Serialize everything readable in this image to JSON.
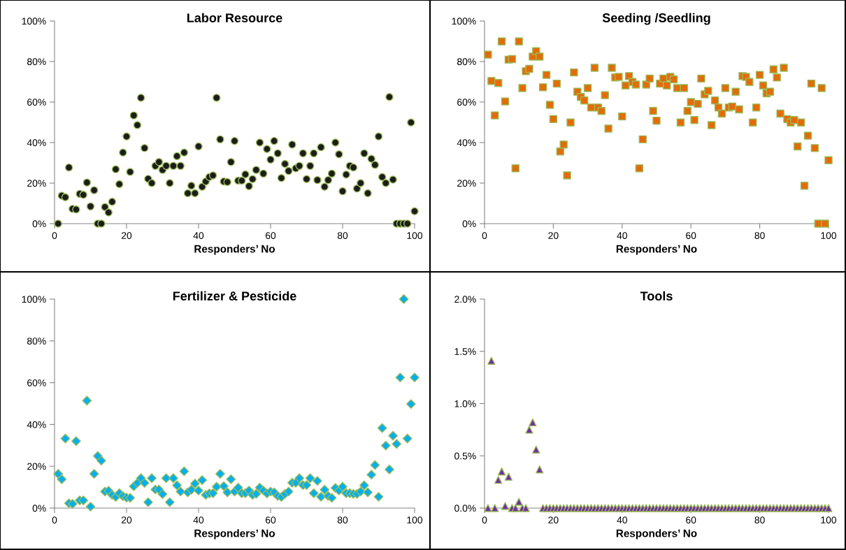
{
  "chart_data": [
    {
      "type": "scatter",
      "title": "Labor Resource",
      "xlabel": "Responders’ No",
      "marker": "circle",
      "grid": false,
      "x": [
        1,
        2,
        3,
        4,
        5,
        6,
        7,
        8,
        9,
        10,
        11,
        12,
        13,
        14,
        15,
        16,
        17,
        18,
        19,
        20,
        21,
        22,
        23,
        24,
        25,
        26,
        27,
        28,
        29,
        30,
        31,
        32,
        33,
        34,
        35,
        36,
        37,
        38,
        39,
        40,
        41,
        42,
        43,
        44,
        45,
        46,
        47,
        48,
        49,
        50,
        51,
        52,
        53,
        54,
        55,
        56,
        57,
        58,
        59,
        60,
        61,
        62,
        63,
        64,
        65,
        66,
        67,
        68,
        69,
        70,
        71,
        72,
        73,
        74,
        75,
        76,
        77,
        78,
        79,
        80,
        81,
        82,
        83,
        84,
        85,
        86,
        87,
        88,
        89,
        90,
        91,
        92,
        93,
        94,
        95,
        96,
        97,
        98,
        99,
        100
      ],
      "series": [
        {
          "color": "#1c1c1c",
          "values": [
            0,
            13.8,
            13,
            27.7,
            7.3,
            7,
            14.7,
            14.2,
            20.3,
            8.5,
            16.5,
            0,
            0,
            8.2,
            5.5,
            10.8,
            26.8,
            19.5,
            35.1,
            43,
            25.5,
            53.4,
            48.6,
            62.1,
            37.3,
            22.1,
            20,
            28.5,
            30.4,
            26.5,
            28.5,
            20,
            28.5,
            33.3,
            28.5,
            35.1,
            15,
            18.7,
            15,
            38.1,
            18.2,
            20.8,
            23,
            23.8,
            62.1,
            41.6,
            20.8,
            20.5,
            30.4,
            40.8,
            21.2,
            21.2,
            24.3,
            18.5,
            22,
            26.5,
            40,
            24.7,
            36.8,
            31.6,
            40.8,
            34.7,
            22.5,
            29.5,
            26,
            39,
            27.3,
            28.5,
            34.7,
            22,
            28.5,
            34.7,
            21.5,
            37.7,
            18.2,
            21.5,
            24.7,
            40,
            34.2,
            16,
            24.2,
            28.5,
            27.7,
            17.3,
            20,
            34.7,
            15,
            32,
            29,
            43,
            23,
            20,
            62.5,
            21.7,
            0,
            0,
            0,
            0,
            49.9,
            6.1
          ]
        }
      ],
      "xlim": [
        0,
        100
      ],
      "xticks": [
        0,
        20,
        40,
        60,
        80,
        100
      ],
      "ylim": [
        0,
        100
      ],
      "yticks": [
        {
          "value": 0,
          "label": "0%"
        },
        {
          "value": 20,
          "label": "20%"
        },
        {
          "value": 40,
          "label": "40%"
        },
        {
          "value": 60,
          "label": "60%"
        },
        {
          "value": 80,
          "label": "80%"
        },
        {
          "value": 100,
          "label": "100%"
        }
      ]
    },
    {
      "type": "scatter",
      "title": "Seeding /Seedling",
      "xlabel": "Responders’ No",
      "marker": "square",
      "grid": false,
      "x": [
        1,
        2,
        3,
        4,
        5,
        6,
        7,
        8,
        9,
        10,
        11,
        12,
        13,
        14,
        15,
        16,
        17,
        18,
        19,
        20,
        21,
        22,
        23,
        24,
        25,
        26,
        27,
        28,
        29,
        30,
        31,
        32,
        33,
        34,
        35,
        36,
        37,
        38,
        39,
        40,
        41,
        42,
        43,
        44,
        45,
        46,
        47,
        48,
        49,
        50,
        51,
        52,
        53,
        54,
        55,
        56,
        57,
        58,
        59,
        60,
        61,
        62,
        63,
        64,
        65,
        66,
        67,
        68,
        69,
        70,
        71,
        72,
        73,
        74,
        75,
        76,
        77,
        78,
        79,
        80,
        81,
        82,
        83,
        84,
        85,
        86,
        87,
        88,
        89,
        90,
        91,
        92,
        93,
        94,
        95,
        96,
        97,
        98,
        99,
        100
      ],
      "series": [
        {
          "color": "#e36c09",
          "values": [
            83.4,
            70.4,
            53.4,
            69.4,
            89.9,
            60.3,
            80.9,
            81.2,
            27.3,
            89.9,
            66.9,
            75.2,
            76.4,
            82.4,
            85.1,
            82.4,
            67.3,
            73.4,
            58.6,
            51.6,
            69.1,
            35.6,
            39,
            23.8,
            49.9,
            74.6,
            65.1,
            62.5,
            60.8,
            66.9,
            57.3,
            76.9,
            57.3,
            55.6,
            63.4,
            46.9,
            76.9,
            72.1,
            72.4,
            52.9,
            68.2,
            72.8,
            69.9,
            68.6,
            27.3,
            41.6,
            68.6,
            71.6,
            55.6,
            50.8,
            69.1,
            71.6,
            68.2,
            72.4,
            71.2,
            66.9,
            49.9,
            66.9,
            55.6,
            60,
            51.1,
            59.1,
            71.6,
            63.8,
            65.5,
            48.6,
            60.8,
            57.3,
            54.3,
            66.9,
            57.3,
            57.8,
            65.1,
            56.4,
            72.8,
            72.4,
            69.9,
            49.9,
            57.3,
            73.4,
            68.2,
            64.3,
            65.1,
            76.1,
            72.1,
            54.3,
            76.9,
            51.6,
            49.9,
            51.1,
            38.1,
            49.9,
            18.7,
            43.4,
            69.1,
            37.3,
            0,
            66.9,
            0,
            31.3
          ]
        }
      ],
      "xlim": [
        0,
        100
      ],
      "xticks": [
        0,
        20,
        40,
        60,
        80,
        100
      ],
      "ylim": [
        0,
        100
      ],
      "yticks": [
        {
          "value": 0,
          "label": "0%"
        },
        {
          "value": 20,
          "label": "20%"
        },
        {
          "value": 40,
          "label": "40%"
        },
        {
          "value": 60,
          "label": "60%"
        },
        {
          "value": 80,
          "label": "80%"
        },
        {
          "value": 100,
          "label": "100%"
        }
      ]
    },
    {
      "type": "scatter",
      "title": "Fertilizer & Pesticide",
      "xlabel": "Responders’ No",
      "marker": "diamond",
      "grid": false,
      "x": [
        1,
        2,
        3,
        4,
        5,
        6,
        7,
        8,
        9,
        10,
        11,
        12,
        13,
        14,
        15,
        16,
        17,
        18,
        19,
        20,
        21,
        22,
        23,
        24,
        25,
        26,
        27,
        28,
        29,
        30,
        31,
        32,
        33,
        34,
        35,
        36,
        37,
        38,
        39,
        40,
        41,
        42,
        43,
        44,
        45,
        46,
        47,
        48,
        49,
        50,
        51,
        52,
        53,
        54,
        55,
        56,
        57,
        58,
        59,
        60,
        61,
        62,
        63,
        64,
        65,
        66,
        67,
        68,
        69,
        70,
        71,
        72,
        73,
        74,
        75,
        76,
        77,
        78,
        79,
        80,
        81,
        82,
        83,
        84,
        85,
        86,
        87,
        88,
        89,
        90,
        91,
        92,
        93,
        94,
        95,
        96,
        97,
        98,
        99,
        100
      ],
      "series": [
        {
          "color": "#00b0f0",
          "values": [
            16.4,
            13.8,
            33.3,
            2.3,
            2,
            32,
            3.7,
            3.7,
            51.4,
            0.7,
            16.4,
            24.9,
            22.7,
            7.9,
            8.3,
            6.3,
            5.3,
            7.1,
            5.7,
            5,
            4.9,
            10.4,
            12,
            14.3,
            12,
            2.8,
            14.3,
            8.9,
            8.9,
            6.7,
            14.3,
            2.8,
            14.3,
            10.9,
            7.9,
            17.6,
            7.5,
            8.8,
            11.7,
            8.4,
            13.4,
            6.3,
            7,
            7.1,
            10.2,
            16.4,
            10.5,
            7.5,
            13.8,
            7.9,
            9.8,
            7.1,
            7.1,
            8.4,
            6.3,
            6.8,
            9.8,
            8.4,
            7,
            7.9,
            7.5,
            5.8,
            5.3,
            6.8,
            7.9,
            12.1,
            12.1,
            14.3,
            11,
            11,
            14.3,
            7.1,
            13,
            5.4,
            8.8,
            5.8,
            4.9,
            9.6,
            8.4,
            10.2,
            7.1,
            7.1,
            6.8,
            6.8,
            7.9,
            10.9,
            7.5,
            16,
            20.6,
            5.4,
            38.3,
            29.9,
            18.5,
            34.6,
            30.7,
            62.5,
            100,
            33.3,
            49.8,
            62.5
          ]
        }
      ],
      "xlim": [
        0,
        100
      ],
      "xticks": [
        0,
        20,
        40,
        60,
        80,
        100
      ],
      "ylim": [
        0,
        100
      ],
      "yticks": [
        {
          "value": 0,
          "label": "0%"
        },
        {
          "value": 20,
          "label": "20%"
        },
        {
          "value": 40,
          "label": "40%"
        },
        {
          "value": 60,
          "label": "60%"
        },
        {
          "value": 80,
          "label": "80%"
        },
        {
          "value": 100,
          "label": "100%"
        }
      ]
    },
    {
      "type": "scatter",
      "title": "Tools",
      "xlabel": "Responders’ No",
      "marker": "triangle",
      "grid": false,
      "x": [
        1,
        2,
        3,
        4,
        5,
        6,
        7,
        8,
        9,
        10,
        11,
        12,
        13,
        14,
        15,
        16,
        17,
        18,
        19,
        20,
        21,
        22,
        23,
        24,
        25,
        26,
        27,
        28,
        29,
        30,
        31,
        32,
        33,
        34,
        35,
        36,
        37,
        38,
        39,
        40,
        41,
        42,
        43,
        44,
        45,
        46,
        47,
        48,
        49,
        50,
        51,
        52,
        53,
        54,
        55,
        56,
        57,
        58,
        59,
        60,
        61,
        62,
        63,
        64,
        65,
        66,
        67,
        68,
        69,
        70,
        71,
        72,
        73,
        74,
        75,
        76,
        77,
        78,
        79,
        80,
        81,
        82,
        83,
        84,
        85,
        86,
        87,
        88,
        89,
        90,
        91,
        92,
        93,
        94,
        95,
        96,
        97,
        98,
        99,
        100
      ],
      "series": [
        {
          "color": "#7030a0",
          "values": [
            0,
            1.41,
            0,
            0.27,
            0.35,
            0.02,
            0.3,
            0,
            0,
            0.06,
            0,
            0,
            0.75,
            0.82,
            0.56,
            0.37,
            0,
            0,
            0,
            0,
            0,
            0,
            0,
            0,
            0,
            0,
            0,
            0,
            0,
            0,
            0,
            0,
            0,
            0,
            0,
            0,
            0,
            0,
            0,
            0,
            0,
            0,
            0,
            0,
            0,
            0,
            0,
            0,
            0,
            0,
            0,
            0,
            0,
            0,
            0,
            0,
            0,
            0,
            0,
            0,
            0,
            0,
            0,
            0,
            0,
            0,
            0,
            0,
            0,
            0,
            0,
            0,
            0,
            0,
            0,
            0,
            0,
            0,
            0,
            0,
            0,
            0,
            0,
            0,
            0,
            0,
            0,
            0,
            0,
            0,
            0,
            0,
            0,
            0,
            0,
            0,
            0,
            0,
            0,
            0
          ]
        }
      ],
      "xlim": [
        0,
        100
      ],
      "xticks": [
        0,
        20,
        40,
        60,
        80,
        100
      ],
      "ylim": [
        0,
        2
      ],
      "yticks": [
        {
          "value": 0,
          "label": "0.0%"
        },
        {
          "value": 0.5,
          "label": "0.5%"
        },
        {
          "value": 1,
          "label": "1.0%"
        },
        {
          "value": 1.5,
          "label": "1.5%"
        },
        {
          "value": 2,
          "label": "2.0%"
        }
      ]
    }
  ]
}
